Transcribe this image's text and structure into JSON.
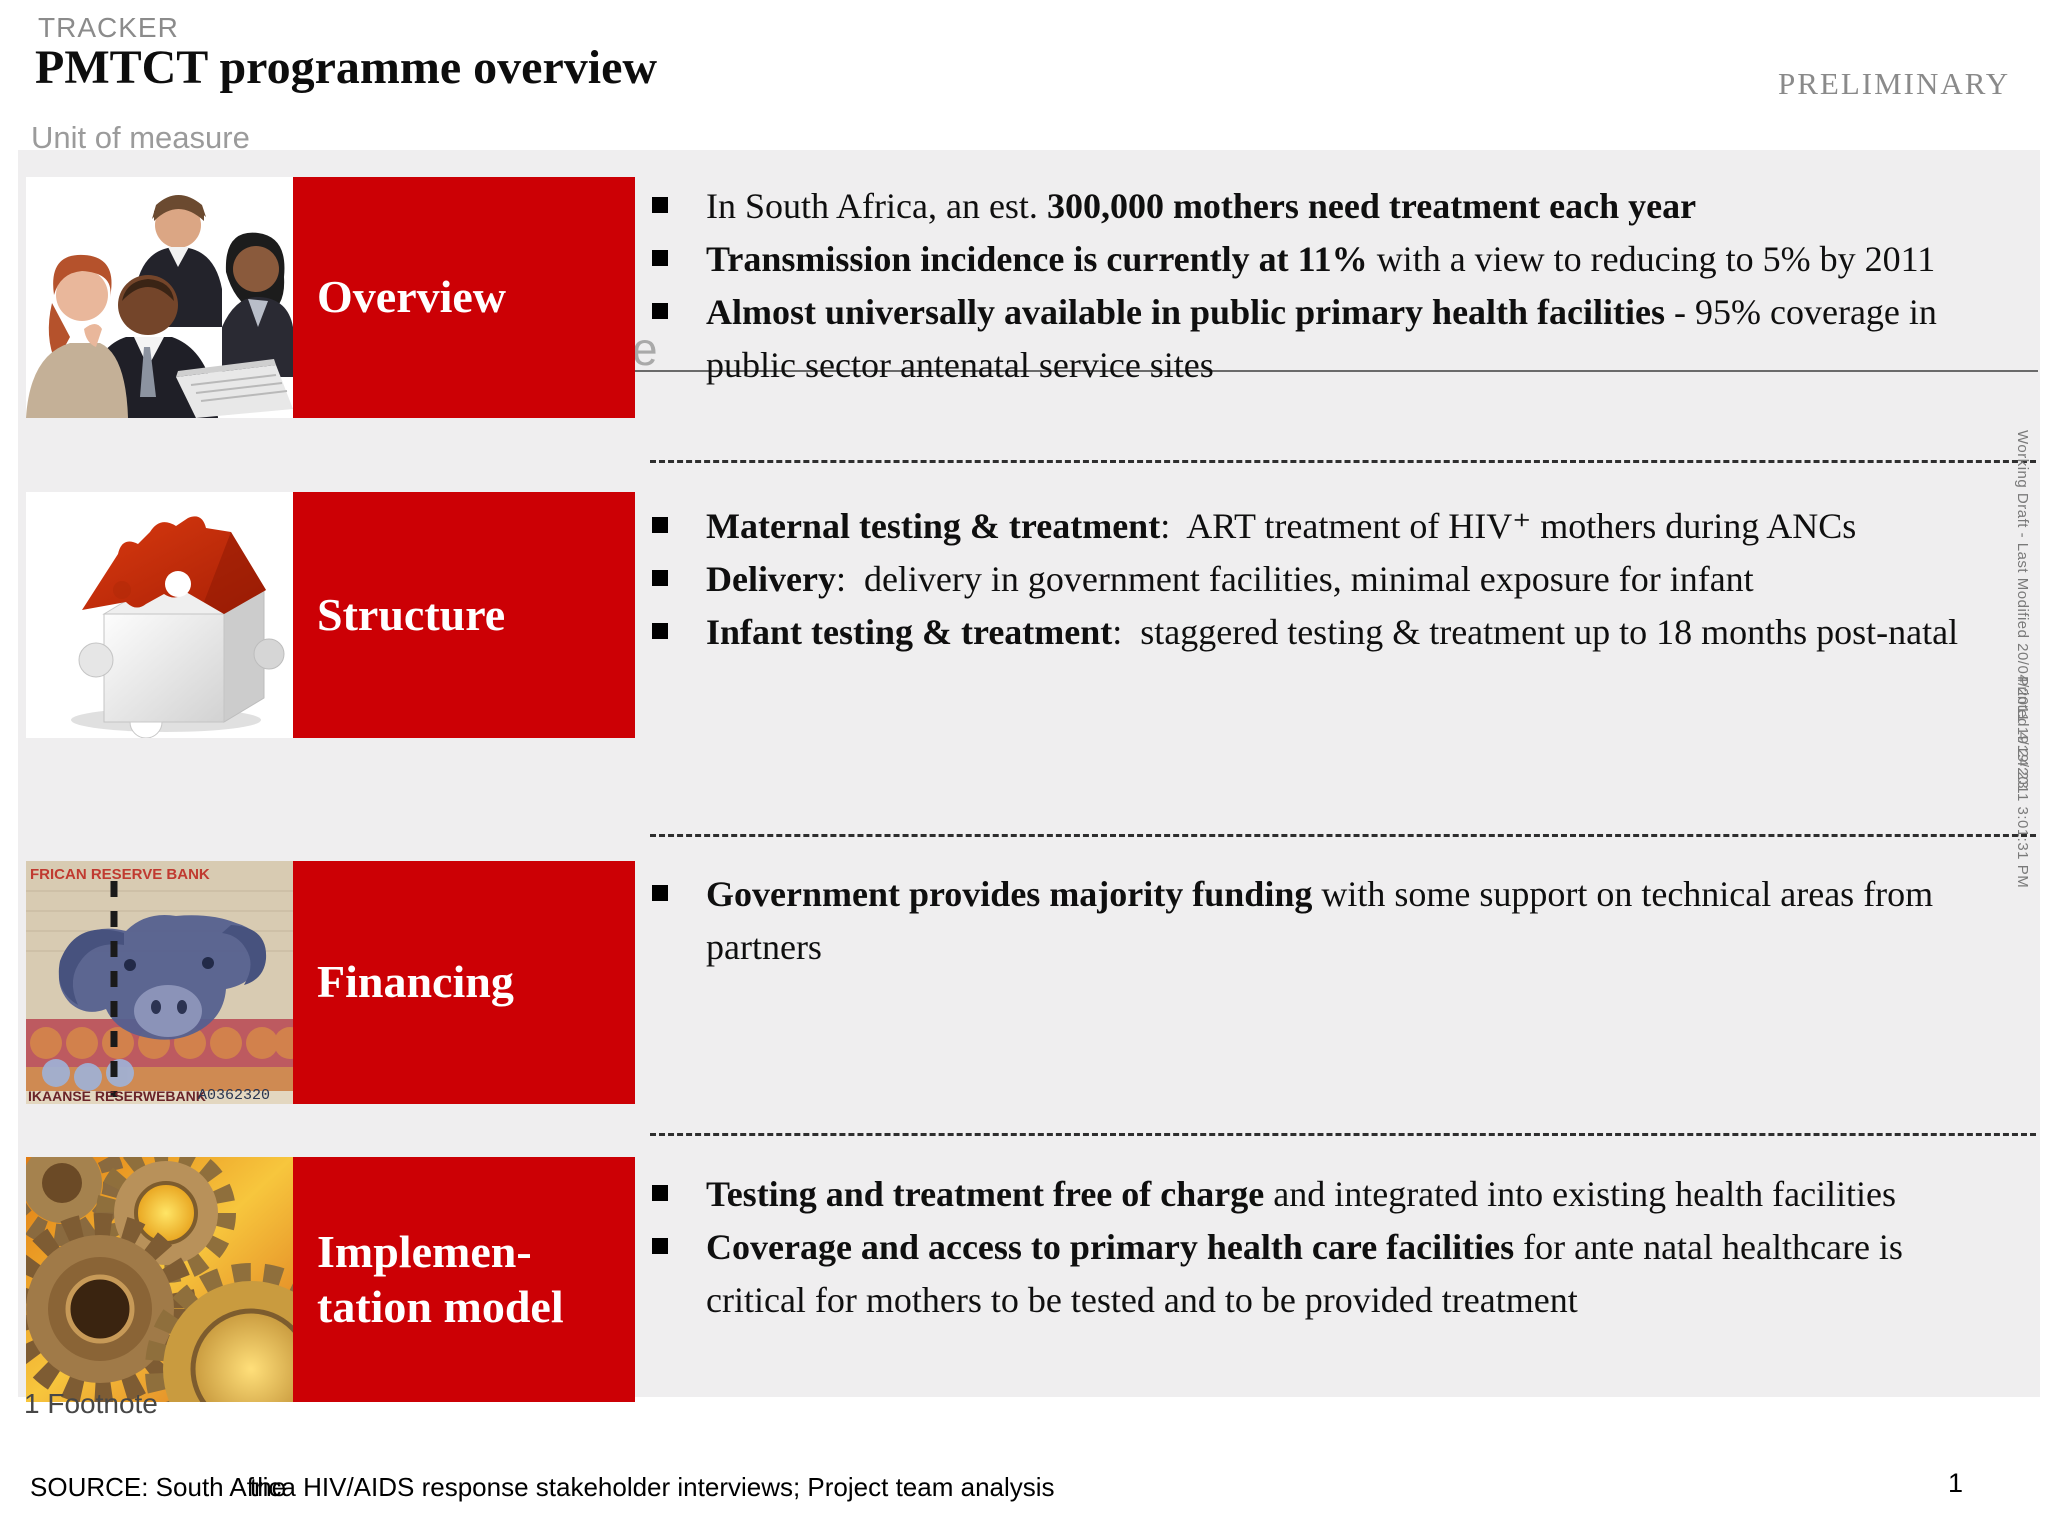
{
  "header": {
    "eyebrow": "TRACKER",
    "title": "PMTCT programme overview",
    "stamp": "PRELIMINARY",
    "unit_label": "Unit of measure",
    "stray_letter": "e"
  },
  "rows": [
    {
      "label": "Overview",
      "image": "business-team-photo",
      "bullets": [
        {
          "segments": [
            {
              "text": "In South Africa, an est. ",
              "bold": false
            },
            {
              "text": "300,000 mothers need treatment each year",
              "bold": true
            }
          ]
        },
        {
          "segments": [
            {
              "text": "Transmission incidence is currently at 11%",
              "bold": true
            },
            {
              "text": " with a view to reducing to 5% by 2011",
              "bold": false
            }
          ]
        },
        {
          "segments": [
            {
              "text": "Almost universally available in public primary health facilities",
              "bold": true
            },
            {
              "text": " - 95% coverage in public sector antenatal service sites",
              "bold": false
            }
          ]
        }
      ]
    },
    {
      "label": "Structure",
      "image": "puzzle-pieces-photo",
      "bullets": [
        {
          "segments": [
            {
              "text": "Maternal testing & treatment",
              "bold": true
            },
            {
              "text": ":  ART treatment of HIV⁺ mothers during ANCs",
              "bold": false
            }
          ]
        },
        {
          "segments": [
            {
              "text": "Delivery",
              "bold": true
            },
            {
              "text": ":  delivery in government facilities, minimal exposure for infant",
              "bold": false
            }
          ]
        },
        {
          "segments": [
            {
              "text": "Infant testing & treatment",
              "bold": true
            },
            {
              "text": ":  staggered testing & treatment up to 18 months post-natal",
              "bold": false
            }
          ]
        }
      ]
    },
    {
      "label": "Financing",
      "image": "banknote-photo",
      "image_texts": {
        "top": "FRICAN RESERVE BANK",
        "bottom_left": "IKAANSE RESERWEBANK",
        "serial": "A0362320"
      },
      "bullets": [
        {
          "segments": [
            {
              "text": "Government provides majority funding",
              "bold": true
            },
            {
              "text": " with some support on technical areas from partners",
              "bold": false
            }
          ]
        }
      ]
    },
    {
      "label": "Implemen-\ntation model",
      "image": "gears-photo",
      "bullets": [
        {
          "segments": [
            {
              "text": "Testing and treatment free of charge",
              "bold": true
            },
            {
              "text": " and integrated into existing health facilities",
              "bold": false
            }
          ]
        },
        {
          "segments": [
            {
              "text": "Coverage and access to primary health care facilities",
              "bold": true
            },
            {
              "text": " for ante natal healthcare is critical for mothers to be tested and to be provided treatment",
              "bold": false
            }
          ]
        }
      ]
    }
  ],
  "side_text": {
    "line1": "Working Draft - Last Modified 20/04/2011 19:24:23",
    "line2": "Printed 4/19/2011 3:01:31 PM"
  },
  "footer": {
    "footnote": "1 Footnote",
    "source": "SOURCE: South Africa HIV/AIDS response stakeholder interviews; Project team analysis",
    "source_overlap": "the",
    "page_number": "1"
  },
  "colors": {
    "accent_red": "#cc0005",
    "panel_gray": "#efeeef",
    "muted_gray": "#8b8b8b"
  }
}
